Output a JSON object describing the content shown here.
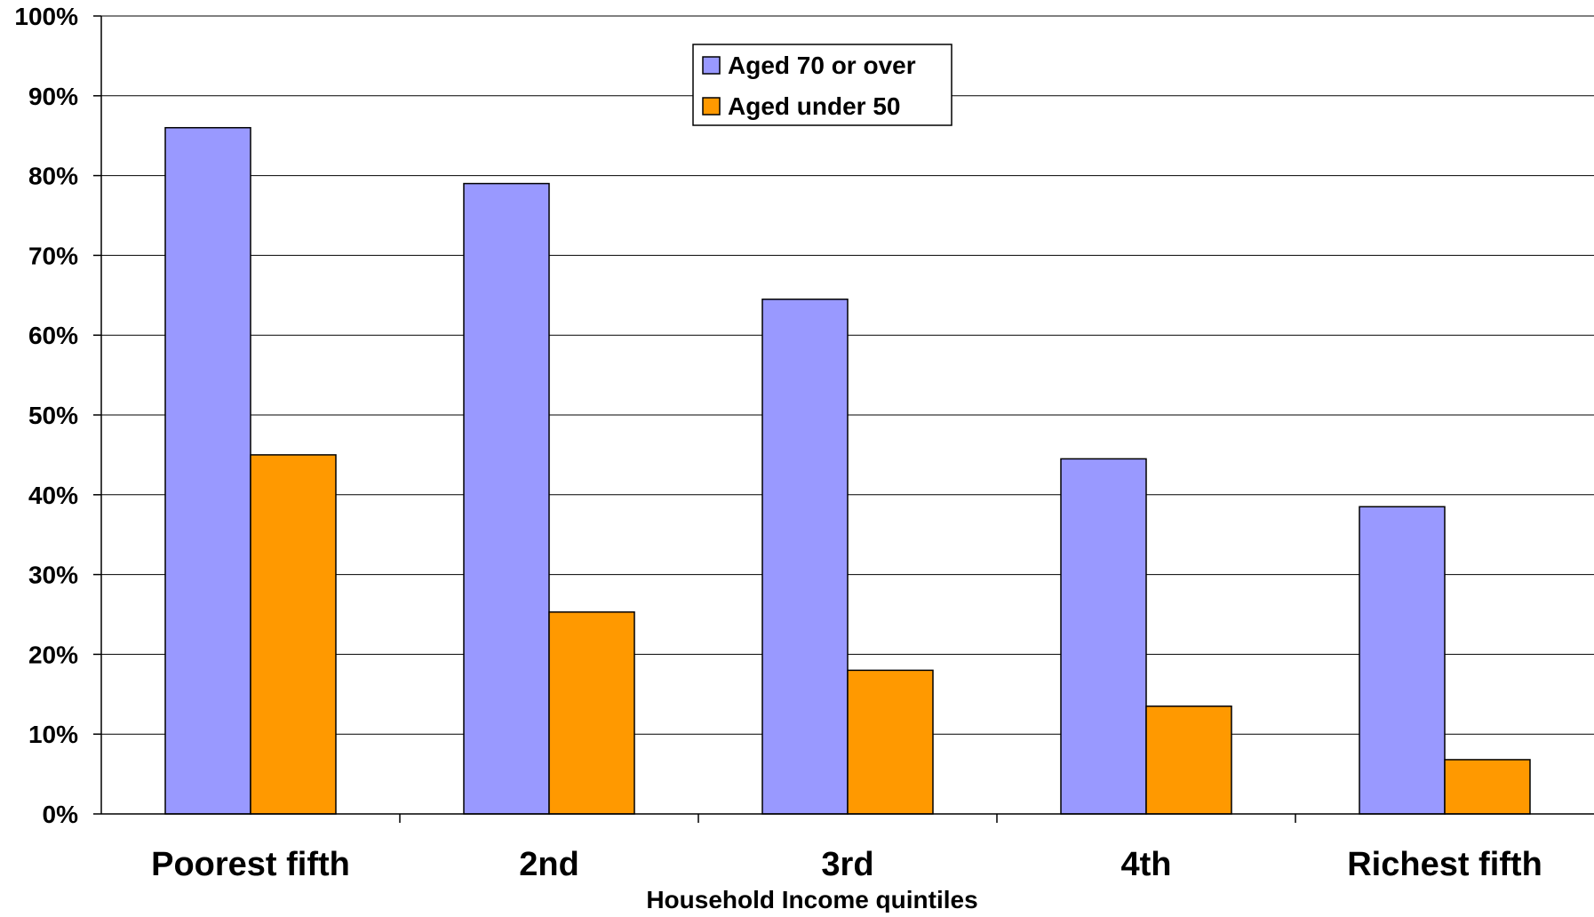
{
  "chart_data": {
    "type": "bar",
    "title": "",
    "xlabel": "Household Income quintiles",
    "ylabel": "",
    "categories": [
      "Poorest fifth",
      "2nd",
      "3rd",
      "4th",
      "Richest fifth"
    ],
    "series": [
      {
        "name": "Aged 70 or over",
        "color": "#9999ff",
        "values": [
          86,
          79,
          64.5,
          44.5,
          38.5
        ]
      },
      {
        "name": "Aged under 50",
        "color": "#ff9900",
        "values": [
          45,
          25.3,
          18,
          13.5,
          6.8
        ]
      }
    ],
    "ylim": [
      0,
      100
    ],
    "yticks": [
      "0%",
      "10%",
      "20%",
      "30%",
      "40%",
      "50%",
      "60%",
      "70%",
      "80%",
      "90%",
      "100%"
    ],
    "grid": true,
    "legend_position": "top-center"
  }
}
